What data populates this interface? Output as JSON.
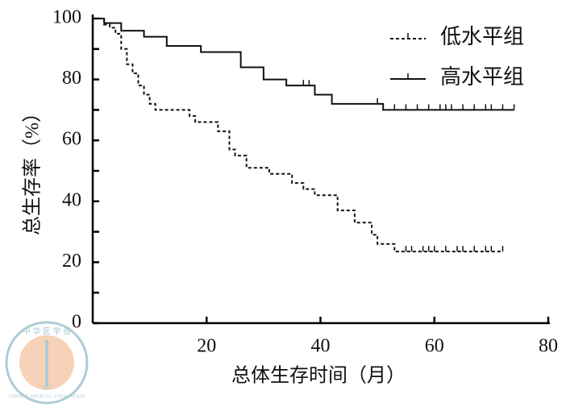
{
  "chart_data": {
    "type": "step",
    "ylabel": "总生存率（%）",
    "xlabel": "总体生存时间（月）",
    "xlim": [
      0,
      80
    ],
    "ylim": [
      0,
      100
    ],
    "xticks": [
      20,
      40,
      60,
      80
    ],
    "yticks": [
      0,
      20,
      40,
      60,
      80,
      100
    ],
    "y_minor_ticks": [
      10,
      30,
      50,
      70,
      90
    ],
    "legend": "upper right",
    "series": [
      {
        "name": "低水平组",
        "color": "#111111",
        "line_style": "dashed",
        "x": [
          0,
          2,
          3,
          4,
          5,
          6,
          7,
          8,
          9,
          10,
          11,
          17,
          18,
          22,
          24,
          25,
          27,
          31,
          35,
          37,
          39,
          43,
          46,
          49,
          50,
          53,
          72
        ],
        "values": [
          100,
          98,
          97,
          95,
          90,
          85,
          82,
          78,
          75,
          72,
          70,
          68,
          66,
          63,
          57,
          55,
          51,
          49,
          46,
          44,
          42,
          37,
          33,
          29,
          26,
          23.5,
          23.5
        ],
        "censored_x": [
          55,
          56,
          58,
          59,
          60,
          62,
          64,
          65,
          67,
          69,
          70,
          72
        ]
      },
      {
        "name": "高水平组",
        "color": "#111111",
        "line_style": "solid",
        "x": [
          0,
          2,
          5,
          9,
          13,
          19,
          26,
          30,
          34,
          39,
          42,
          51,
          74
        ],
        "values": [
          100,
          98.5,
          96,
          94,
          91,
          89,
          84,
          80,
          78,
          75,
          72,
          70,
          70
        ],
        "censored_x": [
          37,
          38,
          50,
          53,
          55,
          57,
          59,
          61,
          62,
          63,
          65,
          67,
          69,
          70,
          72,
          74
        ]
      }
    ]
  },
  "watermark": {
    "text_cn": "中 华 医 学 会",
    "text_en": "CHINESE MEDICAL ASSOCIATION",
    "year": "1915"
  }
}
